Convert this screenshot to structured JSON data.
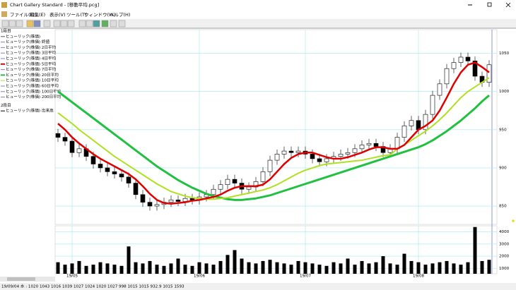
{
  "window": {
    "title": "Chart Gallery Standard - [移動平均.pcg]",
    "menu": [
      "ファイル(F)",
      "編集(E)",
      "表示(V)",
      "ツール(T)",
      "ウィンドウ(W)",
      "ヘルプ(H)"
    ],
    "status": "19/09/04 水 : 1020 1043 1016 1039 1027 1024 1020 1027 998 1015 1015 932.9 1015 1593"
  },
  "legend": [
    {
      "name": "1段目"
    },
    {
      "name": "ヒューリック(株価)",
      "color": "#555555"
    },
    {
      "name": "ヒューリック(株価) 終値",
      "color": "#8080c0"
    },
    {
      "name": "ヒューリック(株価) 2日平均",
      "color": "#8080c0"
    },
    {
      "name": "ヒューリック(株価) 3日平均",
      "color": "#8080c0"
    },
    {
      "name": "ヒューリック(株価) 4日平均",
      "color": "#8080c0"
    },
    {
      "name": "ヒューリック(株価) 5日平均",
      "color": "#e00000"
    },
    {
      "name": "ヒューリック(株価) 7日平均",
      "color": "#8080c0"
    },
    {
      "name": "ヒューリック(株価) 20日平均",
      "color": "#20c040"
    },
    {
      "name": "ヒューリック(株価) 10日平均",
      "color": "#b0e020"
    },
    {
      "name": "ヒューリック(株価) 60日平均",
      "color": "#8080c0"
    },
    {
      "name": "ヒューリック(株価) 100日平均",
      "color": "#8080c0"
    },
    {
      "name": "ヒューリック(株価) 200日平均",
      "color": "#8080c0"
    },
    {
      "name": "2段目"
    },
    {
      "name": "ヒューリック(株価) 出来高",
      "color": "#000000"
    }
  ],
  "chart_data": {
    "type": "candlestick",
    "open": [
      945,
      940,
      935,
      920,
      925,
      915,
      905,
      900,
      895,
      892,
      888,
      880,
      865,
      855,
      850,
      852,
      855,
      858,
      856,
      860,
      858,
      862,
      865,
      872,
      878,
      885,
      880,
      872,
      875,
      882,
      895,
      910,
      918,
      922,
      920,
      922,
      918,
      912,
      908,
      912,
      915,
      918,
      920,
      925,
      930,
      932,
      928,
      920,
      925,
      940,
      955,
      962,
      950,
      970,
      995,
      1010,
      1030,
      1038,
      1045,
      1040,
      1020,
      1012
    ],
    "high": [
      951,
      946,
      941,
      931,
      931,
      921,
      911,
      906,
      901,
      898,
      894,
      886,
      871,
      861,
      858,
      861,
      864,
      864,
      866,
      866,
      868,
      871,
      878,
      884,
      891,
      891,
      886,
      881,
      888,
      901,
      916,
      924,
      928,
      928,
      928,
      928,
      924,
      918,
      918,
      921,
      924,
      926,
      931,
      936,
      938,
      938,
      934,
      931,
      946,
      961,
      968,
      968,
      976,
      1001,
      1016,
      1036,
      1044,
      1051,
      1051,
      1046,
      1026,
      1041
    ],
    "low": [
      934,
      929,
      914,
      914,
      909,
      899,
      894,
      889,
      886,
      882,
      874,
      859,
      849,
      844,
      844,
      846,
      849,
      850,
      850,
      852,
      852,
      856,
      859,
      866,
      872,
      874,
      866,
      866,
      869,
      876,
      889,
      904,
      912,
      914,
      914,
      912,
      906,
      902,
      902,
      906,
      909,
      912,
      914,
      919,
      924,
      922,
      914,
      914,
      919,
      934,
      949,
      944,
      944,
      964,
      989,
      1004,
      1024,
      1032,
      1034,
      1014,
      1006,
      1006
    ],
    "close": [
      940,
      935,
      920,
      925,
      915,
      905,
      900,
      895,
      892,
      888,
      880,
      865,
      855,
      850,
      852,
      855,
      858,
      856,
      860,
      858,
      862,
      865,
      872,
      878,
      885,
      880,
      872,
      875,
      882,
      895,
      910,
      918,
      922,
      920,
      922,
      918,
      912,
      908,
      912,
      915,
      918,
      920,
      925,
      930,
      932,
      928,
      920,
      925,
      940,
      955,
      962,
      950,
      970,
      995,
      1010,
      1030,
      1038,
      1045,
      1040,
      1020,
      1012,
      1035
    ],
    "series": [
      {
        "color": "#20c040",
        "width": 3,
        "values": [
          1000,
          993,
          986,
          979,
          972,
          965,
          958,
          951,
          944,
          937,
          930,
          923,
          916,
          909,
          902,
          896,
          890,
          884,
          879,
          874,
          870,
          866,
          863,
          861,
          859,
          858,
          858,
          859,
          860,
          862,
          864,
          867,
          870,
          873,
          876,
          879,
          882,
          885,
          888,
          891,
          894,
          897,
          900,
          903,
          906,
          909,
          912,
          915,
          918,
          921,
          924,
          927,
          931,
          936,
          942,
          948,
          955,
          962,
          970,
          978,
          987,
          995
        ]
      },
      {
        "color": "#b0e020",
        "width": 2,
        "values": [
          972,
          965,
          958,
          950,
          943,
          936,
          929,
          922,
          915,
          909,
          903,
          897,
          891,
          885,
          879,
          874,
          869,
          866,
          863,
          861,
          860,
          859,
          859,
          860,
          861,
          863,
          865,
          867,
          869,
          871,
          874,
          878,
          883,
          888,
          893,
          897,
          900,
          903,
          905,
          906,
          907,
          908,
          909,
          910,
          912,
          914,
          916,
          917,
          925,
          930,
          936,
          942,
          948,
          955,
          963,
          972,
          982,
          992,
          1000,
          1006,
          1012,
          1018
        ]
      },
      {
        "color": "#e00000",
        "width": 2.5,
        "values": [
          958,
          950,
          940,
          932,
          925,
          918,
          912,
          907,
          902,
          897,
          892,
          885,
          876,
          866,
          858,
          854,
          853,
          854,
          855,
          857,
          858,
          860,
          862,
          865,
          870,
          874,
          876,
          876,
          876,
          878,
          885,
          895,
          905,
          913,
          918,
          920,
          920,
          917,
          914,
          912,
          912,
          914,
          917,
          920,
          924,
          927,
          927,
          925,
          925,
          930,
          940,
          950,
          955,
          962,
          975,
          992,
          1010,
          1025,
          1035,
          1038,
          1032,
          1025
        ]
      }
    ],
    "ylim": [
      826,
      1081
    ],
    "yticks": [
      850,
      900,
      950,
      1000,
      1050
    ],
    "xticks": [
      {
        "value": 2,
        "label": "19/05"
      },
      {
        "value": 20,
        "label": "19/06"
      },
      {
        "value": 35,
        "label": "19/07"
      },
      {
        "value": 51,
        "label": "19/08"
      }
    ],
    "volume": {
      "values": [
        1500,
        1300,
        1400,
        1600,
        1200,
        1300,
        1500,
        1400,
        1300,
        1200,
        2800,
        1500,
        1400,
        1600,
        1300,
        1200,
        1400,
        1800,
        1300,
        1200,
        1500,
        1400,
        1300,
        1600,
        2100,
        2500,
        1800,
        1500,
        1400,
        1600,
        1700,
        1500,
        1400,
        1300,
        1600,
        1500,
        1400,
        1300,
        1200,
        1500,
        1400,
        1800,
        1300,
        1600,
        1400,
        1500,
        2000,
        1400,
        1300,
        2200,
        1600,
        1500,
        1300,
        1400,
        1500,
        1600,
        1400,
        1300,
        1500,
        4400,
        1600,
        1700
      ],
      "color": "#000000",
      "ylim": [
        550,
        4500
      ],
      "yticks": [
        1000,
        2000,
        3000,
        4000
      ]
    },
    "grid": true
  }
}
